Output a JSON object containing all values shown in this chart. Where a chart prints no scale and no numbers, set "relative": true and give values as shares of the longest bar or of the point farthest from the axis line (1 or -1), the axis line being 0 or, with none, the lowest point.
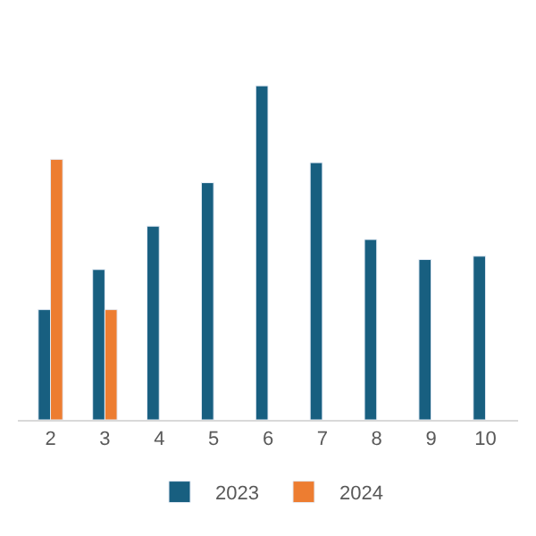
{
  "chart_data": {
    "type": "bar",
    "relative": true,
    "categories": [
      "2",
      "3",
      "4",
      "5",
      "6",
      "7",
      "8",
      "9",
      "10"
    ],
    "series": [
      {
        "name": "2023",
        "color": "#185f80",
        "values": [
          0.33,
          0.45,
          0.58,
          0.71,
          1,
          0.77,
          0.54,
          0.48,
          0.49
        ]
      },
      {
        "name": "2024",
        "color": "#ed7d31",
        "values": [
          0.78,
          0.33,
          null,
          null,
          null,
          null,
          null,
          null,
          null
        ]
      }
    ],
    "legend": "bottom"
  }
}
